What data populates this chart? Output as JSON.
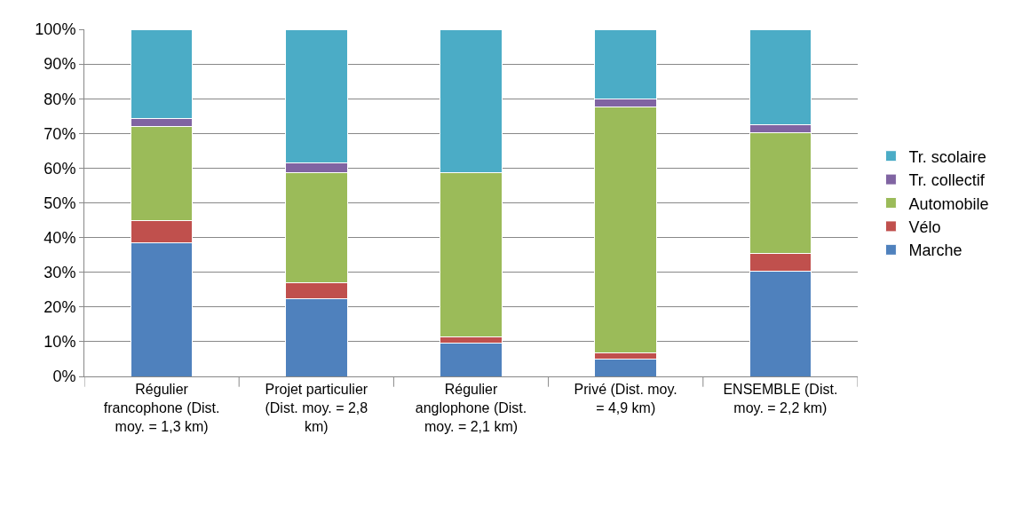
{
  "chart_data": {
    "type": "bar",
    "stacked": true,
    "categories": [
      "Régulier francophone (Dist. moy. = 1,3 km)",
      "Projet particulier (Dist. moy. = 2,8 km)",
      "Régulier anglophone (Dist. moy. = 2,1 km)",
      "Privé (Dist. moy. = 4,9 km)",
      "ENSEMBLE (Dist. moy. = 2,2 km)"
    ],
    "series": [
      {
        "name": "Marche",
        "color": "#4f81bd",
        "values": [
          38.4,
          22.3,
          9.7,
          5.1,
          30.4
        ]
      },
      {
        "name": "Vélo",
        "color": "#c0504d",
        "values": [
          6.4,
          4.6,
          1.8,
          1.8,
          5.1
        ]
      },
      {
        "name": "Automobile",
        "color": "#9bbb59",
        "values": [
          27.3,
          31.7,
          47.3,
          70.8,
          34.6
        ]
      },
      {
        "name": "Tr. collectif",
        "color": "#8064a2",
        "values": [
          2.3,
          3.0,
          null,
          2.1,
          2.3
        ]
      },
      {
        "name": "Tr. scolaire",
        "color": "#4bacc6",
        "values": [
          25.6,
          38.4,
          41.2,
          20.2,
          27.6
        ]
      }
    ],
    "ylim": [
      0,
      100
    ],
    "yticks": [
      {
        "value": 0,
        "label": "0%"
      },
      {
        "value": 10,
        "label": "10%"
      },
      {
        "value": 20,
        "label": "20%"
      },
      {
        "value": 30,
        "label": "30%"
      },
      {
        "value": 40,
        "label": "40%"
      },
      {
        "value": 50,
        "label": "50%"
      },
      {
        "value": 60,
        "label": "60%"
      },
      {
        "value": 70,
        "label": "70%"
      },
      {
        "value": 80,
        "label": "80%"
      },
      {
        "value": 90,
        "label": "90%"
      },
      {
        "value": 100,
        "label": "100%"
      }
    ],
    "grid": "y",
    "legend": "right"
  }
}
